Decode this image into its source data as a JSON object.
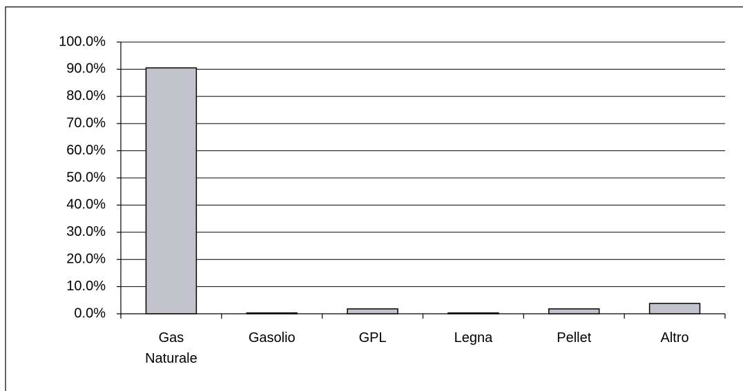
{
  "chart_data": {
    "type": "bar",
    "categories": [
      "Gas Naturale",
      "Gasolio",
      "GPL",
      "Legna",
      "Pellet",
      "Altro"
    ],
    "values": [
      90.5,
      0.3,
      1.8,
      0.3,
      1.8,
      3.8
    ],
    "color": "#c3c3cb",
    "ylim": [
      0,
      100
    ],
    "yticks": [
      {
        "value": 0,
        "label": "0.0%"
      },
      {
        "value": 10,
        "label": "10.0%"
      },
      {
        "value": 20,
        "label": "20.0%"
      },
      {
        "value": 30,
        "label": "30.0%"
      },
      {
        "value": 40,
        "label": "40.0%"
      },
      {
        "value": 50,
        "label": "50.0%"
      },
      {
        "value": 60,
        "label": "60.0%"
      },
      {
        "value": 70,
        "label": "70.0%"
      },
      {
        "value": 80,
        "label": "80.0%"
      },
      {
        "value": 90,
        "label": "90.0%"
      },
      {
        "value": 100,
        "label": "100.0%"
      }
    ],
    "grid": true
  }
}
